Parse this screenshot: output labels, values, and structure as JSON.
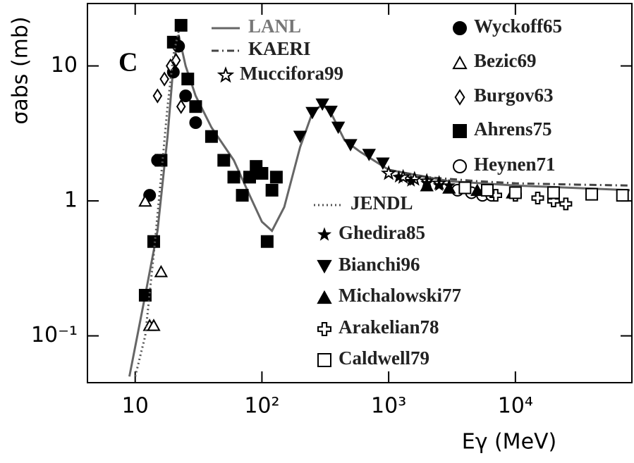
{
  "chart_data": {
    "type": "scatter",
    "annotation": "C",
    "x_label": "Eγ (MeV)",
    "y_label": "σabs (mb)",
    "xscale": "log",
    "yscale": "log",
    "xlim": [
      4.2,
      83000
    ],
    "ylim": [
      0.045,
      29
    ],
    "xticks": [
      {
        "value": 10,
        "label": "10"
      },
      {
        "value": 100,
        "label": "10²"
      },
      {
        "value": 1000,
        "label": "10³"
      },
      {
        "value": 10000,
        "label": "10⁴"
      }
    ],
    "yticks": [
      {
        "value": 0.1,
        "label": "10⁻¹"
      },
      1,
      10
    ],
    "series": [
      {
        "name": "LANL",
        "color": "#666666",
        "line_style": "solid",
        "x": [
          9,
          12,
          15,
          18,
          20,
          22,
          25,
          30,
          40,
          60,
          80,
          100,
          120,
          150,
          200,
          250,
          300,
          350,
          450,
          600,
          1000,
          3000,
          10000,
          80000
        ],
        "values": [
          0.05,
          0.2,
          0.6,
          3,
          10,
          17,
          10,
          6,
          3.5,
          2,
          1.1,
          0.7,
          0.6,
          0.9,
          2.5,
          4.5,
          5.2,
          4.5,
          2.8,
          2.3,
          1.7,
          1.4,
          1.3,
          1.2
        ]
      },
      {
        "name": "KAERI",
        "color": "#444444",
        "line_style": "dashdot",
        "x": [
          1000,
          2000,
          5000,
          10000,
          30000,
          80000
        ],
        "values": [
          1.7,
          1.5,
          1.4,
          1.35,
          1.32,
          1.3
        ]
      },
      {
        "name": "Muccifora99",
        "color": "#000000",
        "marker": "star-open",
        "x": [
          1000,
          1300,
          1600,
          2000,
          2500
        ],
        "values": [
          1.6,
          1.5,
          1.45,
          1.4,
          1.35
        ]
      },
      {
        "name": "Wyckoff65",
        "color": "#000000",
        "marker": "circle-filled",
        "x": [
          13,
          15,
          20,
          22,
          25,
          30
        ],
        "values": [
          1.1,
          2,
          9,
          14,
          6,
          3.8
        ]
      },
      {
        "name": "Bezic69",
        "color": "#000000",
        "marker": "triangle-open",
        "x": [
          12,
          13,
          14,
          16
        ],
        "values": [
          1,
          0.12,
          0.12,
          0.3
        ]
      },
      {
        "name": "Burgov63",
        "color": "#000000",
        "marker": "diamond-open",
        "x": [
          15,
          17,
          19,
          21,
          23
        ],
        "values": [
          6,
          8,
          10,
          11,
          5
        ]
      },
      {
        "name": "Ahrens75",
        "color": "#000000",
        "marker": "square-filled",
        "x": [
          12,
          14,
          16,
          20,
          23,
          26,
          30,
          40,
          50,
          60,
          70,
          80,
          90,
          100,
          110,
          120,
          130
        ],
        "values": [
          0.2,
          0.5,
          2,
          15,
          20,
          8,
          5,
          3,
          2,
          1.5,
          1.1,
          1.5,
          1.8,
          1.6,
          0.5,
          1.2,
          1.5
        ]
      },
      {
        "name": "Heynen71",
        "color": "#000000",
        "marker": "circle-open",
        "x": [
          3500,
          4500,
          5500,
          6500
        ],
        "values": [
          1.2,
          1.15,
          1.1,
          1.1
        ]
      },
      {
        "name": "JENDL",
        "color": "#555555",
        "line_style": "dotted",
        "x": [
          10,
          12,
          14,
          16,
          18,
          20,
          22
        ],
        "values": [
          0.05,
          0.1,
          0.4,
          1.5,
          5,
          12,
          18
        ]
      },
      {
        "name": "Ghedira85",
        "color": "#000000",
        "marker": "star-filled",
        "x": [
          1200,
          1500,
          2000,
          2500,
          3000
        ],
        "values": [
          1.5,
          1.4,
          1.35,
          1.3,
          1.3
        ]
      },
      {
        "name": "Bianchi96",
        "color": "#000000",
        "marker": "triangle-down-filled",
        "x": [
          200,
          250,
          300,
          350,
          400,
          500,
          700,
          900
        ],
        "values": [
          3,
          4.5,
          5.2,
          4.6,
          3.5,
          2.6,
          2.2,
          1.9
        ]
      },
      {
        "name": "Michalowski77",
        "color": "#000000",
        "marker": "triangle-filled",
        "x": [
          2000,
          3000,
          5000,
          9500
        ],
        "values": [
          1.3,
          1.25,
          1.2,
          1.15
        ]
      },
      {
        "name": "Arakelian78",
        "color": "#000000",
        "marker": "cross-open",
        "x": [
          7000,
          10000,
          15000,
          20000,
          25000
        ],
        "values": [
          1.1,
          1.1,
          1.05,
          1,
          0.95
        ]
      },
      {
        "name": "Caldwell79",
        "color": "#000000",
        "marker": "square-open",
        "x": [
          4000,
          6000,
          10000,
          20000,
          40000,
          70000
        ],
        "values": [
          1.25,
          1.2,
          1.15,
          1.15,
          1.12,
          1.1
        ]
      }
    ]
  }
}
